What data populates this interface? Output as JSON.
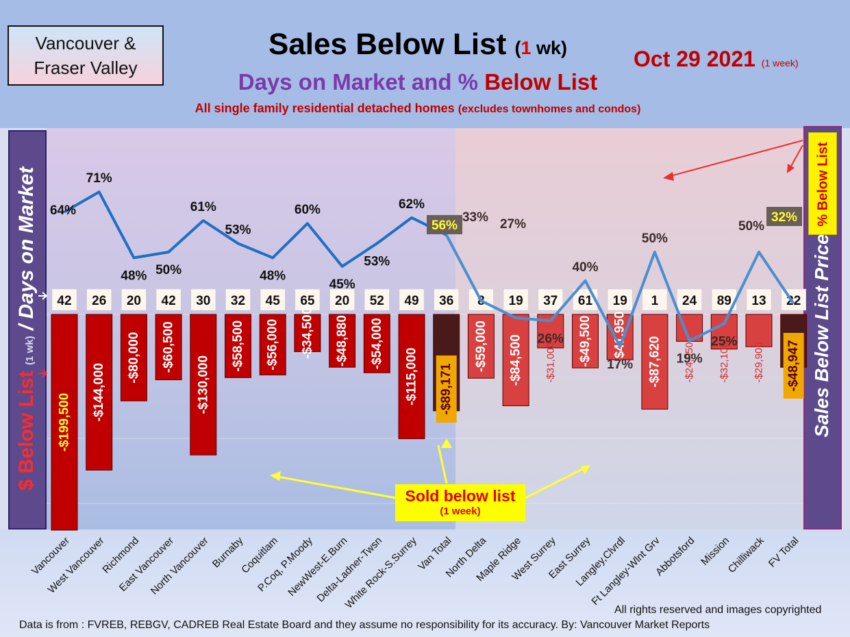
{
  "badge": {
    "line1": "Vancouver &",
    "line2": "Fraser Valley"
  },
  "title": {
    "main": "Sales Below List",
    "paren_open": "(",
    "paren_num": "1",
    "paren_rest": " wk)"
  },
  "subtitle": {
    "part1": "Days on Market and % ",
    "part2": "Below List"
  },
  "subnote": {
    "main": "All single family residential detached homes ",
    "small": "(excludes townhomes and condos)"
  },
  "date": {
    "main": "Oct 29  2021",
    "note": "(1 week)"
  },
  "left_axis": {
    "part1": "$ Below List",
    "part2": "(1 wk)",
    "part3": " / Days on Market"
  },
  "right_axis": {
    "label": "Sales Below List Price"
  },
  "pct_tag": {
    "label": "% Below List"
  },
  "callout": {
    "line1": "Sold below list",
    "line2": "(1 week)"
  },
  "footer": {
    "rights": "All rights reserved and  images copyrighted",
    "source": "Data is from : FVREB, REBGV, CADREB Real Estate Board and they assume no responsibility for its accuracy. By: Vancouver Market Reports"
  },
  "colors": {
    "bar_dark": "#c00000",
    "bar_light": "#d94040",
    "total_bar": "#4a1a1a",
    "line": "#2e75b6",
    "label_red": "#e00000"
  },
  "chart_data": {
    "type": "bar",
    "categories": [
      "Vancouver",
      "West Vancouver",
      "Richmond",
      "East Vancouver",
      "North Vancouver",
      "Burnaby",
      "Coquitlam",
      "P.Coq, P.Moody",
      "NewWest-E.Burn",
      "Delta-Ladner-Twsn",
      "White Rock-S.Surrey",
      "Van Total",
      "North Delta",
      "Maple Ridge",
      "West Surrey",
      "East Surrey",
      "Langley,Clvrdl",
      "Ft Langley-Wlnt Grv",
      "Abbotsford",
      "Mission",
      "Chilliwack",
      "FV Total"
    ],
    "series": [
      {
        "name": "$ Below List",
        "values": [
          -199500,
          -144000,
          -80000,
          -60500,
          -130000,
          -58500,
          -56000,
          -34500,
          -48880,
          -54000,
          -115000,
          -89171,
          -59000,
          -84500,
          -31000,
          -49500,
          -41950,
          -87620,
          -24950,
          -32100,
          -29900,
          -48947
        ],
        "labels": [
          "-$199,500",
          "-$144,000",
          "-$80,000",
          "-$60,500",
          "-$130,000",
          "-$58,500",
          "-$56,000",
          "-$34,500",
          "-$48,880",
          "-$54,000",
          "-$115,000",
          "-$89,171",
          "-$59,000",
          "-$84,500",
          "-$31,000",
          "-$49,500",
          "-$41,950",
          "-$87,620",
          "-$24,950",
          "-$32,100",
          "-$29,900",
          "-$48,947"
        ]
      },
      {
        "name": "Days on Market",
        "values": [
          42,
          26,
          20,
          42,
          30,
          32,
          45,
          65,
          20,
          52,
          49,
          36,
          8,
          19,
          37,
          61,
          19,
          1,
          24,
          89,
          13,
          22
        ]
      },
      {
        "name": "% Below List",
        "values": [
          64,
          71,
          48,
          50,
          61,
          53,
          48,
          60,
          45,
          53,
          62,
          56,
          33,
          27,
          26,
          40,
          17,
          50,
          19,
          25,
          50,
          32
        ],
        "labels": [
          "64%",
          "71%",
          "48%",
          "50%",
          "61%",
          "53%",
          "48%",
          "60%",
          "45%",
          "53%",
          "62%",
          "56%",
          "33%",
          "27%",
          "26%",
          "40%",
          "17%",
          "50%",
          "19%",
          "25%",
          "50%",
          "32%"
        ]
      }
    ]
  }
}
